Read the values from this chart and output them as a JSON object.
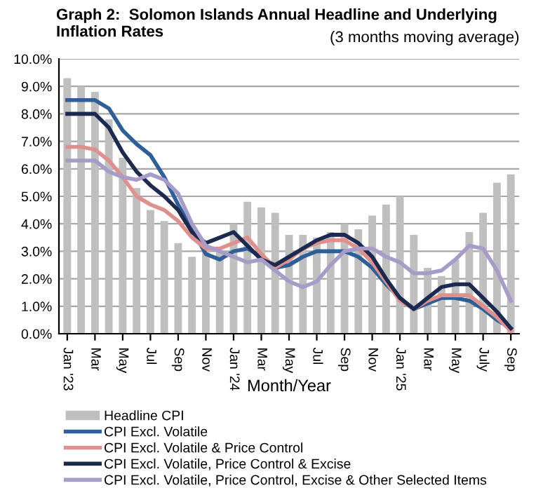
{
  "chart_data": {
    "type": "bar",
    "title": "Graph 2:  Solomon Islands Annual Headline and Underlying Inflation Rates",
    "subtitle": "(3 months moving average)",
    "xlabel": "Month/Year",
    "categories": [
      "Jan '23",
      null,
      "Mar",
      null,
      "May",
      null,
      "Jul",
      null,
      "Sep",
      null,
      "Nov",
      null,
      "Jan '24",
      null,
      "Mar",
      null,
      "May",
      null,
      "Jul",
      null,
      "Sep",
      null,
      "Nov",
      null,
      "Jan '25",
      null,
      "Mar",
      null,
      "May",
      null,
      "July",
      null,
      "Sep"
    ],
    "series": [
      {
        "name": "Headline CPI",
        "color": "#bfbfbf",
        "values": [
          9.3,
          9.0,
          8.8,
          7.8,
          6.4,
          5.3,
          4.5,
          4.1,
          3.3,
          2.8,
          3.1,
          3.0,
          4.0,
          4.8,
          4.6,
          4.4,
          3.6,
          3.6,
          3.5,
          3.7,
          4.0,
          3.8,
          4.3,
          4.7,
          5.0,
          3.6,
          2.4,
          2.1,
          2.7,
          3.7,
          4.4,
          5.5,
          5.8
        ]
      },
      {
        "name": "CPI Excl. Volatile",
        "type": "line",
        "color": "#2f5f98",
        "values": [
          8.5,
          8.5,
          8.5,
          8.2,
          7.4,
          6.9,
          6.5,
          5.7,
          4.7,
          3.8,
          2.9,
          2.7,
          3.0,
          3.1,
          2.8,
          2.4,
          2.5,
          2.8,
          3.0,
          3.0,
          3.0,
          2.8,
          2.4,
          1.8,
          1.3,
          0.9,
          1.1,
          1.3,
          1.3,
          1.2,
          0.9,
          0.5,
          0.2
        ]
      },
      {
        "name": "CPI Excl. Volatile & Price Control",
        "type": "line",
        "color": "#e0908c",
        "values": [
          6.8,
          6.8,
          6.7,
          6.3,
          5.7,
          5.0,
          4.7,
          4.5,
          4.1,
          3.5,
          3.1,
          3.1,
          3.3,
          3.5,
          2.9,
          2.4,
          2.7,
          3.1,
          3.3,
          3.4,
          3.4,
          3.1,
          2.6,
          1.9,
          1.2,
          0.9,
          1.2,
          1.4,
          1.4,
          1.4,
          1.0,
          0.6,
          0.1
        ]
      },
      {
        "name": "CPI Excl. Volatile, Price Control & Excise",
        "type": "line",
        "color": "#1c2a4f",
        "values": [
          8.0,
          8.0,
          8.0,
          7.5,
          6.6,
          5.9,
          5.4,
          5.0,
          4.5,
          3.7,
          3.3,
          3.5,
          3.7,
          3.2,
          2.7,
          2.5,
          2.8,
          3.1,
          3.4,
          3.6,
          3.6,
          3.3,
          2.8,
          2.0,
          1.3,
          0.9,
          1.3,
          1.7,
          1.8,
          1.8,
          1.3,
          0.8,
          0.2
        ]
      },
      {
        "name": "CPI Excl. Volatile, Price Control, Excise & Other Selected Items",
        "type": "line",
        "color": "#a79bc8",
        "values": [
          6.3,
          6.3,
          6.3,
          5.9,
          5.7,
          5.6,
          5.8,
          5.6,
          5.1,
          4.0,
          3.2,
          3.0,
          2.8,
          2.6,
          2.7,
          2.3,
          1.9,
          1.7,
          1.9,
          2.5,
          3.0,
          3.1,
          3.1,
          2.8,
          2.6,
          2.2,
          2.2,
          2.3,
          2.7,
          3.2,
          3.1,
          2.3,
          1.2
        ]
      }
    ],
    "ylim": [
      0,
      10
    ],
    "yticks": [
      {
        "value": 0,
        "label": "0.0%"
      },
      {
        "value": 1,
        "label": "1.0%"
      },
      {
        "value": 2,
        "label": "2.0%"
      },
      {
        "value": 3,
        "label": "3.0%"
      },
      {
        "value": 4,
        "label": "4.0%"
      },
      {
        "value": 5,
        "label": "5.0%"
      },
      {
        "value": 6,
        "label": "6.0%"
      },
      {
        "value": 7,
        "label": "7.0%"
      },
      {
        "value": 8,
        "label": "8.0%"
      },
      {
        "value": 9,
        "label": "9.0%"
      },
      {
        "value": 10,
        "label": "10.0%"
      }
    ],
    "grid": "y",
    "legend": "bottom"
  }
}
